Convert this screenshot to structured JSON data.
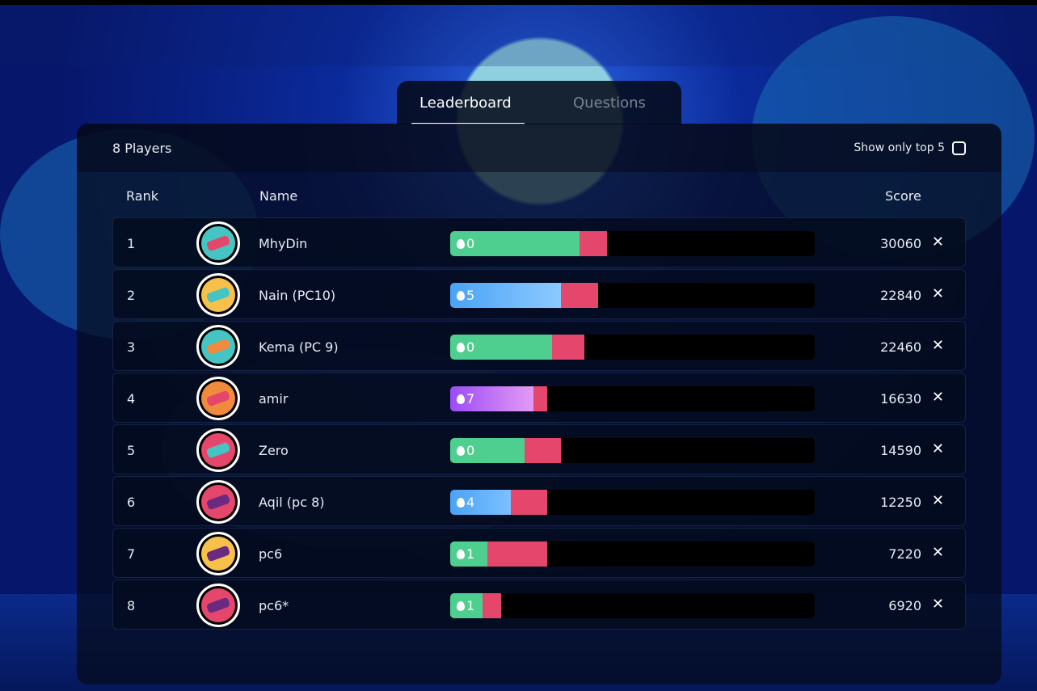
{
  "tabs": [
    {
      "label": "Leaderboard",
      "active": true
    },
    {
      "label": "Questions",
      "active": false
    }
  ],
  "header": {
    "player_count": "8 Players",
    "top5_label": "Show only top 5",
    "top5_checked": false
  },
  "columns": {
    "rank": "Rank",
    "name": "Name",
    "score": "Score"
  },
  "colors": {
    "wrong": "#e5476c",
    "green": "#4fcf8f",
    "blue": "#5aaaf5",
    "purple": "#a855f7"
  },
  "players": [
    {
      "rank": "1",
      "name": "MhyDin",
      "streak": "0",
      "score": "30060",
      "correct_pct": 35.5,
      "wrong_pct": 7.5,
      "bar": "linear-gradient(90deg,#4fcf8f,#4fcf8f)",
      "avatar": "#45c4c4",
      "accent": "#e5476c"
    },
    {
      "rank": "2",
      "name": "Nain (PC10)",
      "streak": "5",
      "score": "22840",
      "correct_pct": 30.4,
      "wrong_pct": 10.2,
      "bar": "linear-gradient(90deg,#4aa3f5,#8ccaff)",
      "avatar": "#f7c04a",
      "accent": "#45c4c4"
    },
    {
      "rank": "3",
      "name": "Kema (PC 9)",
      "streak": "0",
      "score": "22460",
      "correct_pct": 27.9,
      "wrong_pct": 8.9,
      "bar": "linear-gradient(90deg,#4fcf8f,#4fcf8f)",
      "avatar": "#45c4c4",
      "accent": "#f08a3c"
    },
    {
      "rank": "4",
      "name": "amir",
      "streak": "7",
      "score": "16630",
      "correct_pct": 22.8,
      "wrong_pct": 3.8,
      "bar": "linear-gradient(90deg,#9b4cf5,#e49af5)",
      "avatar": "#f08a3c",
      "accent": "#e5476c"
    },
    {
      "rank": "5",
      "name": "Zero",
      "streak": "0",
      "score": "14590",
      "correct_pct": 20.4,
      "wrong_pct": 10.0,
      "bar": "linear-gradient(90deg,#4fcf8f,#4fcf8f)",
      "avatar": "#e5476c",
      "accent": "#45c4c4"
    },
    {
      "rank": "6",
      "name": "Aqil (pc 8)",
      "streak": "4",
      "score": "12250",
      "correct_pct": 16.6,
      "wrong_pct": 10.0,
      "bar": "linear-gradient(90deg,#4aa3f5,#7cc0ff)",
      "avatar": "#e5476c",
      "accent": "#6a2a80"
    },
    {
      "rank": "7",
      "name": "pc6",
      "streak": "1",
      "score": "7220",
      "correct_pct": 10.2,
      "wrong_pct": 16.4,
      "bar": "linear-gradient(90deg,#4fcf8f,#4fcf8f)",
      "avatar": "#f7c04a",
      "accent": "#6a2a80"
    },
    {
      "rank": "8",
      "name": "pc6*",
      "streak": "1",
      "score": "6920",
      "correct_pct": 8.9,
      "wrong_pct": 5.1,
      "bar": "linear-gradient(90deg,#4fcf8f,#4fcf8f)",
      "avatar": "#e5476c",
      "accent": "#6a2a80"
    }
  ]
}
